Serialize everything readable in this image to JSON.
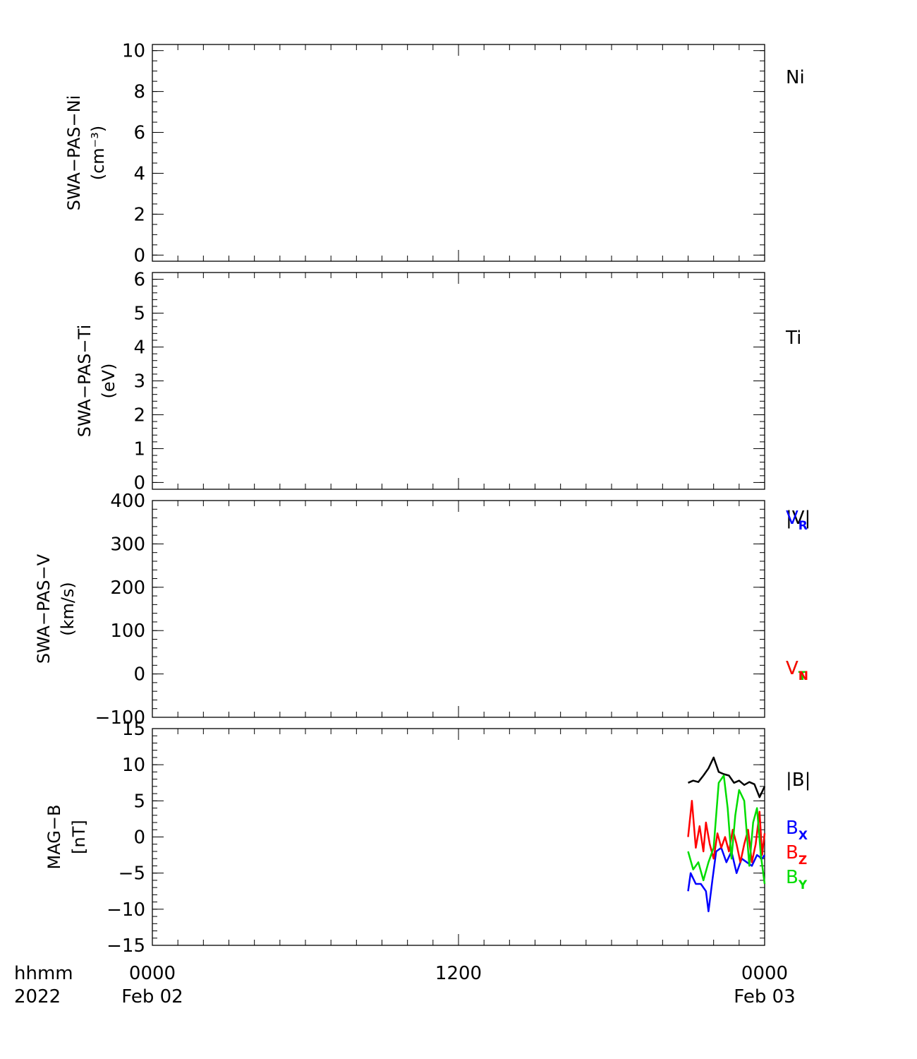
{
  "time_axis": {
    "row1": [
      "hhmm",
      "0000",
      "1200",
      "0000"
    ],
    "row2": [
      "2022",
      "Feb 02",
      "",
      "Feb 03"
    ]
  },
  "chart_data": [
    {
      "type": "line",
      "ylabel": [
        "SWA−PAS−Ni",
        "(cm⁻³)"
      ],
      "ylim": [
        -0.3,
        10.3
      ],
      "yticks": [
        0,
        2,
        4,
        6,
        8,
        10
      ],
      "yticklabels": [
        "0",
        "2",
        "4",
        "6",
        "8",
        "10"
      ],
      "minor_step": 0.5,
      "legend": [
        {
          "text": "Ni",
          "sub": "",
          "color": "#000000"
        }
      ],
      "series": []
    },
    {
      "type": "line",
      "ylabel": [
        "SWA−PAS−Ti",
        "(eV)"
      ],
      "ylim": [
        -0.2,
        6.2
      ],
      "yticks": [
        0,
        1,
        2,
        3,
        4,
        5,
        6
      ],
      "yticklabels": [
        "0",
        "1",
        "2",
        "3",
        "4",
        "5",
        "6"
      ],
      "minor_step": 0.2,
      "legend": [
        {
          "text": "Ti",
          "sub": "",
          "color": "#000000"
        }
      ],
      "series": []
    },
    {
      "type": "line",
      "ylabel": [
        "SWA−PAS−V",
        "(km/s)"
      ],
      "ylim": [
        -100,
        400
      ],
      "yticks": [
        -100,
        0,
        100,
        200,
        300,
        400
      ],
      "yticklabels": [
        "−100",
        "0",
        "100",
        "200",
        "300",
        "400"
      ],
      "minor_step": 20,
      "legend": [
        {
          "text": "|V|",
          "sub": "",
          "color": "#000000"
        },
        {
          "text": "V",
          "sub": "R",
          "color": "#0000ff"
        },
        {
          "text": "V",
          "sub": "T",
          "color": "#00dd00"
        },
        {
          "text": "V",
          "sub": "N",
          "color": "#ff0000"
        }
      ],
      "series": []
    },
    {
      "type": "line",
      "ylabel": [
        "MAG−B",
        "[nT]"
      ],
      "ylim": [
        -15,
        15
      ],
      "yticks": [
        -15,
        -10,
        -5,
        0,
        5,
        10,
        15
      ],
      "yticklabels": [
        "−15",
        "−10",
        "−5",
        "0",
        "5",
        "10",
        "15"
      ],
      "minor_step": 1,
      "legend": [
        {
          "text": "|B|",
          "sub": "",
          "color": "#000000"
        },
        {
          "text": "B",
          "sub": "X",
          "color": "#0000ff"
        },
        {
          "text": "B",
          "sub": "Z",
          "color": "#ff0000"
        },
        {
          "text": "B",
          "sub": "Y",
          "color": "#00dd00"
        }
      ],
      "series": [
        {
          "name": "|B|",
          "color": "#000000",
          "x": [
            21.0,
            21.2,
            21.4,
            21.6,
            21.8,
            22.0,
            22.2,
            22.4,
            22.6,
            22.8,
            23.0,
            23.2,
            23.4,
            23.6,
            23.8,
            24.0
          ],
          "y": [
            7.5,
            7.8,
            7.6,
            8.5,
            9.5,
            11.0,
            9.0,
            8.7,
            8.5,
            7.5,
            7.8,
            7.2,
            7.6,
            7.3,
            5.5,
            7.0
          ]
        },
        {
          "name": "Bₓ",
          "color": "#0000ff",
          "x": [
            21.0,
            21.1,
            21.3,
            21.5,
            21.7,
            21.8,
            21.95,
            22.1,
            22.3,
            22.5,
            22.7,
            22.9,
            23.1,
            23.3,
            23.5,
            23.7,
            23.9,
            24.0
          ],
          "y": [
            -7.5,
            -5.0,
            -6.5,
            -6.5,
            -7.5,
            -10.3,
            -6.0,
            -2.0,
            -1.5,
            -3.5,
            -2.0,
            -5.0,
            -3.0,
            -3.5,
            -4.0,
            -2.5,
            -3.0,
            -2.5
          ]
        },
        {
          "name": "B₉",
          "color": "#ff0000",
          "x": [
            21.0,
            21.15,
            21.3,
            21.45,
            21.6,
            21.7,
            21.85,
            22.0,
            22.15,
            22.3,
            22.45,
            22.6,
            22.75,
            22.9,
            23.05,
            23.2,
            23.35,
            23.5,
            23.65,
            23.8,
            23.9,
            24.0
          ],
          "y": [
            0.0,
            5.0,
            -1.5,
            1.5,
            -2.0,
            2.0,
            -1.0,
            -3.0,
            0.5,
            -1.5,
            0.0,
            -2.0,
            1.0,
            -1.0,
            -3.5,
            -1.0,
            1.0,
            -3.5,
            -1.0,
            3.5,
            -2.5,
            0.5
          ]
        },
        {
          "name": "Bᵧ",
          "color": "#00dd00",
          "x": [
            21.0,
            21.2,
            21.4,
            21.6,
            21.8,
            22.0,
            22.2,
            22.4,
            22.55,
            22.7,
            22.85,
            23.0,
            23.2,
            23.4,
            23.55,
            23.7,
            23.85,
            24.0
          ],
          "y": [
            -2.0,
            -4.5,
            -3.5,
            -6.0,
            -3.5,
            -1.5,
            7.5,
            8.5,
            4.0,
            -3.0,
            3.0,
            6.5,
            5.0,
            -4.0,
            2.0,
            4.0,
            -2.5,
            -6.5
          ]
        }
      ]
    }
  ]
}
